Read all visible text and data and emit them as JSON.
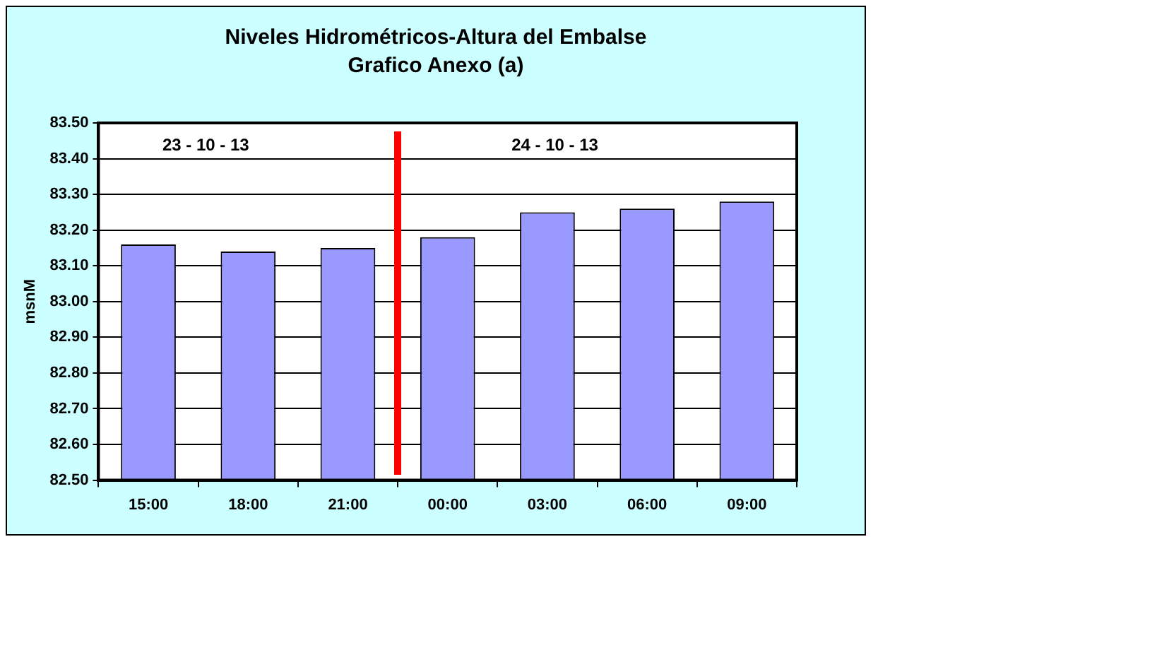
{
  "chart_data": {
    "type": "bar",
    "title": "Niveles Hidrométricos-Altura del Embalse",
    "subtitle": "Grafico Anexo (a)",
    "ylabel": "msnM",
    "categories": [
      "15:00",
      "18:00",
      "21:00",
      "00:00",
      "03:00",
      "06:00",
      "09:00"
    ],
    "values": [
      83.16,
      83.14,
      83.15,
      83.18,
      83.25,
      83.26,
      83.28
    ],
    "color": "#9999ff",
    "ylim": [
      82.5,
      83.5
    ],
    "yticks": [
      {
        "value": 82.5,
        "label": "82.50"
      },
      {
        "value": 82.6,
        "label": "82.60"
      },
      {
        "value": 82.7,
        "label": "82.70"
      },
      {
        "value": 82.8,
        "label": "82.80"
      },
      {
        "value": 82.9,
        "label": "82.90"
      },
      {
        "value": 83,
        "label": "83.00"
      },
      {
        "value": 83.1,
        "label": "83.10"
      },
      {
        "value": 83.2,
        "label": "83.20"
      },
      {
        "value": 83.3,
        "label": "83.30"
      },
      {
        "value": 83.4,
        "label": "83.40"
      },
      {
        "value": 83.5,
        "label": "83.50"
      }
    ],
    "grid": "y",
    "legend": false,
    "annotations": [
      "23 - 10 - 13",
      "24 - 10 - 13"
    ]
  }
}
